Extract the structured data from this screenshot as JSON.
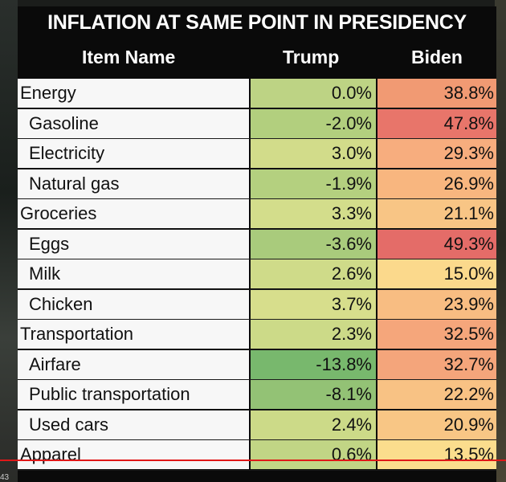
{
  "chart_data": {
    "type": "table",
    "title": "INFLATION AT SAME POINT IN PRESIDENCY",
    "columns": [
      "Item Name",
      "Trump",
      "Biden"
    ],
    "rows": [
      {
        "name": "Energy",
        "sub": false,
        "trump": "0.0%",
        "biden": "38.8%",
        "trump_color": "#bdd384",
        "biden_color": "#f19a73"
      },
      {
        "name": "Gasoline",
        "sub": true,
        "trump": "-2.0%",
        "biden": "47.8%",
        "trump_color": "#b2cf7e",
        "biden_color": "#e8756a"
      },
      {
        "name": "Electricity",
        "sub": true,
        "trump": "3.0%",
        "biden": "29.3%",
        "trump_color": "#d2dc8a",
        "biden_color": "#f7ad7e"
      },
      {
        "name": "Natural gas",
        "sub": true,
        "trump": "-1.9%",
        "biden": "26.9%",
        "trump_color": "#b4d07f",
        "biden_color": "#f8b67f"
      },
      {
        "name": "Groceries",
        "sub": false,
        "trump": "3.3%",
        "biden": "21.1%",
        "trump_color": "#d3dd8b",
        "biden_color": "#f8c585"
      },
      {
        "name": "Eggs",
        "sub": true,
        "trump": "-3.6%",
        "biden": "49.3%",
        "trump_color": "#a9cb7c",
        "biden_color": "#e46c68"
      },
      {
        "name": "Milk",
        "sub": true,
        "trump": "2.6%",
        "biden": "15.0%",
        "trump_color": "#cfdb89",
        "biden_color": "#fbd98c"
      },
      {
        "name": "Chicken",
        "sub": true,
        "trump": "3.7%",
        "biden": "23.9%",
        "trump_color": "#d7de8c",
        "biden_color": "#f8bd82"
      },
      {
        "name": "Transportation",
        "sub": false,
        "trump": "2.3%",
        "biden": "32.5%",
        "trump_color": "#ccda88",
        "biden_color": "#f5a67b"
      },
      {
        "name": "Airfare",
        "sub": true,
        "trump": "-13.8%",
        "biden": "32.7%",
        "trump_color": "#78b86d",
        "biden_color": "#f4a57b"
      },
      {
        "name": "Public transportation",
        "sub": true,
        "trump": "-8.1%",
        "biden": "22.2%",
        "trump_color": "#93c275",
        "biden_color": "#f8c284"
      },
      {
        "name": "Used cars",
        "sub": true,
        "trump": "2.4%",
        "biden": "20.9%",
        "trump_color": "#ccda88",
        "biden_color": "#f8c685"
      },
      {
        "name": "Apparel",
        "sub": false,
        "trump": "0.6%",
        "biden": "13.5%",
        "trump_color": "#c1d585",
        "biden_color": "#fbdd8d"
      }
    ]
  },
  "overlay": {
    "corner_text": "43"
  }
}
